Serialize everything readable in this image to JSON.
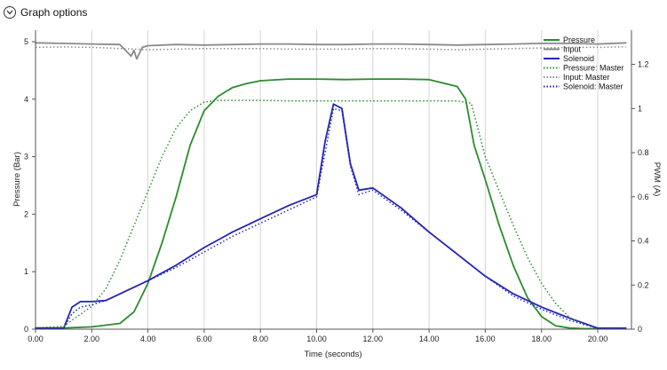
{
  "toolbar": {
    "graph_options_label": "Graph options",
    "icon": "chevron-down-icon"
  },
  "chart_data": {
    "type": "line",
    "xlabel": "Time (seconds)",
    "ylabel_left": "Pressure (Bar)",
    "ylabel_right": "PWM (A)",
    "xlim": [
      0,
      21.2
    ],
    "ylim_left": [
      0,
      5.2
    ],
    "ylim_right": [
      0,
      1.355
    ],
    "x_ticks": [
      "0.00",
      "2.00",
      "4.00",
      "6.00",
      "8.00",
      "10.00",
      "12.00",
      "14.00",
      "16.00",
      "18.00",
      "20.00"
    ],
    "x_tick_values": [
      0,
      2,
      4,
      6,
      8,
      10,
      12,
      14,
      16,
      18,
      20
    ],
    "y_left_ticks": [
      "0",
      "1",
      "2",
      "3",
      "4",
      "5"
    ],
    "y_left_tick_values": [
      0,
      1,
      2,
      3,
      4,
      5
    ],
    "y_right_ticks": [
      "0",
      "0.2",
      "0.4",
      "0.6",
      "0.8",
      "1",
      "1.2"
    ],
    "y_right_tick_values": [
      0,
      0.2,
      0.4,
      0.6,
      0.8,
      1.0,
      1.2
    ],
    "grid": "vertical",
    "legend_position": "top-right",
    "series": [
      {
        "name": "Pressure",
        "axis": "left",
        "color": "#2e8b2e",
        "style": "solid",
        "width": 1.8,
        "x": [
          0,
          1,
          2,
          3,
          3.5,
          4,
          4.5,
          5,
          5.5,
          6,
          6.5,
          7,
          7.5,
          8,
          9,
          10,
          11,
          12,
          13,
          14,
          15,
          15.3,
          15.6,
          16,
          16.5,
          17,
          17.5,
          18,
          18.5,
          19,
          19.5,
          20,
          21
        ],
        "y": [
          0.02,
          0.02,
          0.04,
          0.1,
          0.3,
          0.8,
          1.5,
          2.3,
          3.2,
          3.8,
          4.05,
          4.2,
          4.27,
          4.32,
          4.35,
          4.35,
          4.34,
          4.35,
          4.35,
          4.34,
          4.22,
          4.0,
          3.2,
          2.6,
          1.8,
          1.1,
          0.55,
          0.22,
          0.06,
          0.02,
          0.01,
          0.01,
          0.01
        ]
      },
      {
        "name": "Input",
        "axis": "left",
        "color": "#8a8a8a",
        "style": "solid",
        "width": 1.8,
        "x": [
          0,
          1,
          2,
          3,
          3.2,
          3.4,
          3.5,
          3.6,
          3.7,
          3.8,
          4,
          5,
          6,
          7,
          8,
          9,
          10,
          11,
          12,
          13,
          14,
          15,
          16,
          17,
          18,
          19,
          20,
          21
        ],
        "y": [
          4.98,
          4.97,
          4.96,
          4.95,
          4.85,
          4.75,
          4.85,
          4.7,
          4.8,
          4.9,
          4.93,
          4.95,
          4.94,
          4.95,
          4.96,
          4.96,
          4.95,
          4.95,
          4.96,
          4.96,
          4.95,
          4.94,
          4.95,
          4.96,
          4.97,
          4.97,
          4.96,
          4.98
        ]
      },
      {
        "name": "Solenoid",
        "axis": "right",
        "color": "#2424b8",
        "style": "solid",
        "width": 1.8,
        "x": [
          0,
          1,
          1.3,
          1.6,
          2,
          2.5,
          3,
          4,
          5,
          6,
          7,
          8,
          9,
          10,
          10.3,
          10.6,
          10.9,
          11.2,
          11.5,
          12,
          13,
          14,
          15,
          16,
          17,
          18,
          19,
          20,
          21
        ],
        "y": [
          0.005,
          0.005,
          0.1,
          0.125,
          0.125,
          0.13,
          0.16,
          0.22,
          0.29,
          0.37,
          0.44,
          0.5,
          0.56,
          0.61,
          0.85,
          1.02,
          1.0,
          0.75,
          0.63,
          0.64,
          0.55,
          0.44,
          0.34,
          0.24,
          0.16,
          0.1,
          0.05,
          0.005,
          0.005
        ]
      },
      {
        "name": "Pressure: Master",
        "axis": "left",
        "color": "#2e8b2e",
        "style": "dotted",
        "width": 1.5,
        "x": [
          0,
          1,
          2,
          2.5,
          3,
          3.5,
          4,
          4.5,
          5,
          5.5,
          6,
          6.5,
          7,
          8,
          9,
          10,
          11,
          12,
          13,
          14,
          15,
          15.5,
          16,
          16.5,
          17,
          17.5,
          18,
          18.5,
          19,
          19.5,
          20,
          21
        ],
        "y": [
          0.02,
          0.05,
          0.4,
          0.7,
          1.2,
          1.8,
          2.4,
          3.0,
          3.5,
          3.8,
          3.95,
          3.98,
          3.98,
          3.98,
          3.97,
          3.97,
          3.97,
          3.97,
          3.97,
          3.97,
          3.97,
          3.93,
          3.0,
          2.4,
          1.8,
          1.25,
          0.8,
          0.45,
          0.2,
          0.08,
          0.02,
          0.01
        ]
      },
      {
        "name": "Input: Master",
        "axis": "left",
        "color": "#8a8a8a",
        "style": "dotted",
        "width": 1.5,
        "x": [
          0,
          1,
          2,
          3,
          4,
          5,
          6,
          7,
          8,
          9,
          10,
          11,
          12,
          13,
          14,
          15,
          16,
          17,
          18,
          19,
          20,
          21
        ],
        "y": [
          4.9,
          4.91,
          4.9,
          4.88,
          4.86,
          4.87,
          4.88,
          4.88,
          4.88,
          4.87,
          4.87,
          4.87,
          4.88,
          4.88,
          4.87,
          4.86,
          4.87,
          4.88,
          4.89,
          4.9,
          4.9,
          4.91
        ]
      },
      {
        "name": "Solenoid: Master",
        "axis": "right",
        "color": "#2424b8",
        "style": "dotted",
        "width": 1.5,
        "x": [
          0,
          1,
          1.3,
          1.6,
          2,
          2.5,
          3,
          4,
          5,
          6,
          7,
          8,
          9,
          10,
          10.3,
          10.6,
          10.9,
          11.2,
          11.5,
          12,
          13,
          14,
          15,
          16,
          17,
          18,
          19,
          20,
          21
        ],
        "y": [
          0.005,
          0.005,
          0.07,
          0.1,
          0.11,
          0.13,
          0.16,
          0.22,
          0.28,
          0.35,
          0.42,
          0.48,
          0.54,
          0.6,
          0.8,
          1.0,
          0.99,
          0.74,
          0.61,
          0.63,
          0.54,
          0.44,
          0.34,
          0.24,
          0.15,
          0.09,
          0.04,
          0.005,
          0.005
        ]
      }
    ]
  }
}
